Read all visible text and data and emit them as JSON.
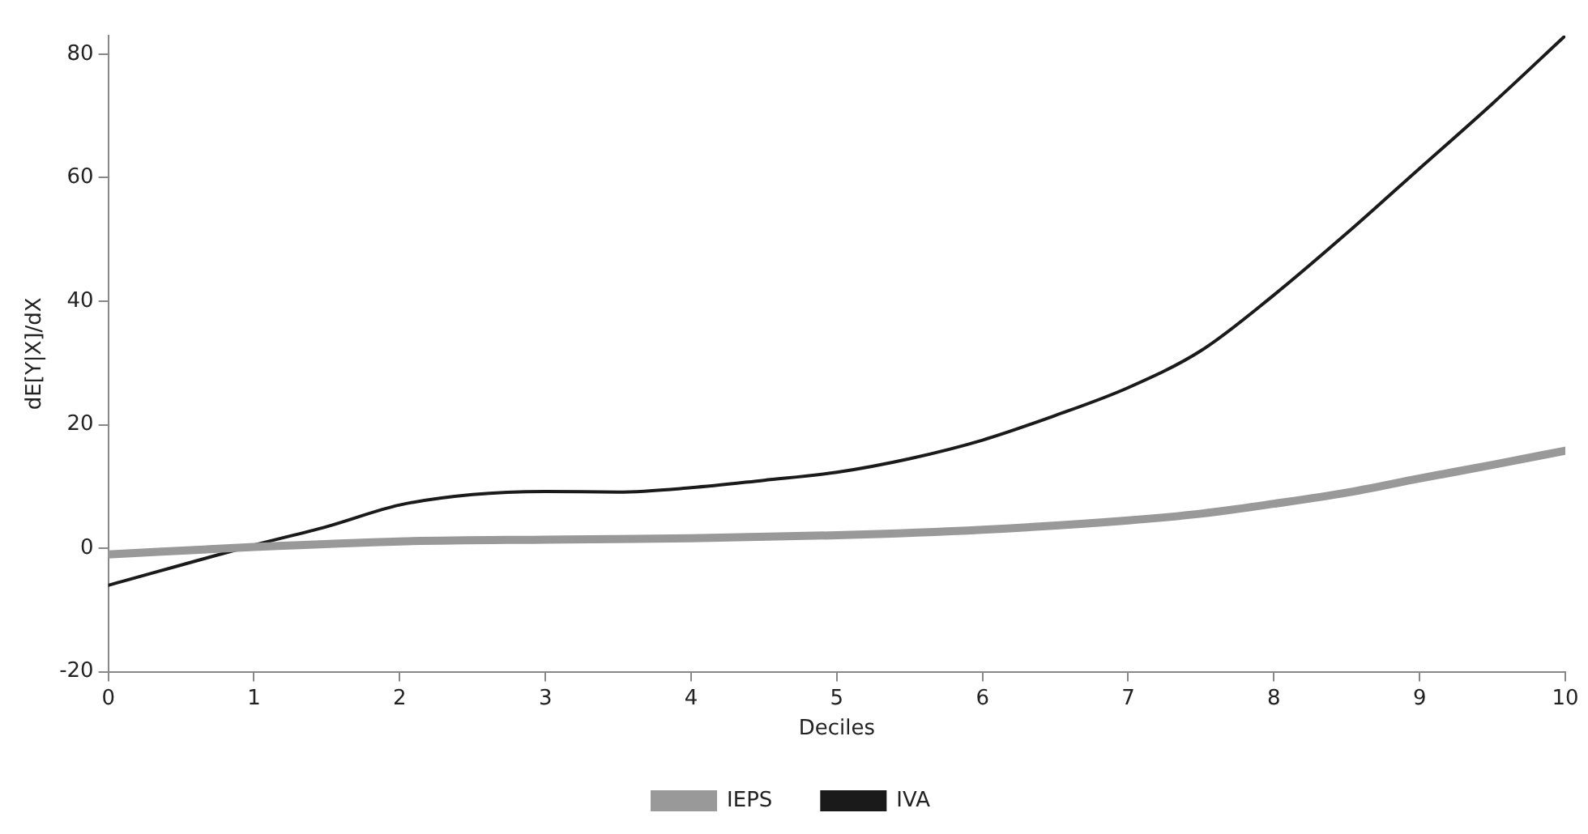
{
  "chart_data": {
    "type": "line",
    "xlabel": "Deciles",
    "ylabel": "dE[Y|X]/dX",
    "xlim": [
      0,
      10
    ],
    "xticks": [
      0,
      1,
      2,
      3,
      4,
      5,
      6,
      7,
      8,
      9,
      10
    ],
    "ylim": [
      -20,
      83
    ],
    "yticks": [
      -20,
      0,
      20,
      40,
      60,
      80
    ],
    "grid": false,
    "legend": "bottom",
    "marker": "none",
    "line_style": "solid",
    "series": [
      {
        "name": "IEPS",
        "color": "#999999",
        "x": [
          0,
          1,
          2,
          3,
          4,
          5,
          6,
          7,
          7.5,
          8,
          8.5,
          9,
          9.5,
          10
        ],
        "values": [
          -1,
          0.2,
          1.1,
          1.4,
          1.6,
          2.1,
          3,
          4.5,
          5.6,
          7.2,
          9,
          11.3,
          13.5,
          15.8
        ]
      },
      {
        "name": "IVA",
        "color": "#1a1a1a",
        "x": [
          0,
          1,
          1.5,
          2,
          2.5,
          3,
          3.5,
          4,
          4.5,
          5,
          5.5,
          6,
          6.5,
          7,
          7.5,
          8,
          8.5,
          9,
          9.5,
          10
        ],
        "values": [
          -6,
          0.5,
          3.5,
          7,
          8.7,
          9.2,
          9.1,
          9.8,
          11,
          12.3,
          14.5,
          17.5,
          21.5,
          26,
          32,
          41,
          51,
          61.5,
          72,
          83
        ]
      }
    ]
  }
}
